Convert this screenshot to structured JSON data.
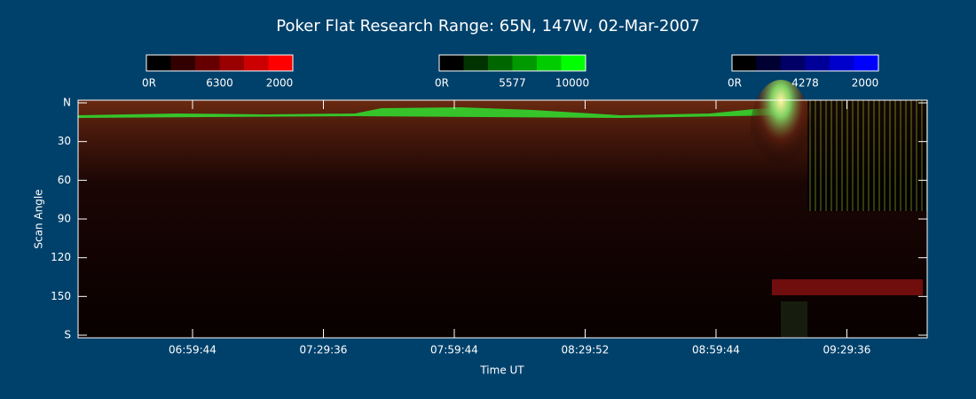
{
  "chart_data": {
    "type": "keogram",
    "title": "Poker Flat Research Range: 65N, 147W, 02-Mar-2007",
    "colorbars": [
      {
        "labels": [
          "0R",
          "6300",
          "2000"
        ],
        "color": "#ff0000"
      },
      {
        "labels": [
          "0R",
          "5577",
          "10000"
        ],
        "color": "#00ff00"
      },
      {
        "labels": [
          "0R",
          "4278",
          "2000"
        ],
        "color": "#0000ff"
      }
    ],
    "y_label": "Scan Angle",
    "x_label": "Time UT",
    "ylim": [
      0,
      180
    ],
    "yticks": [
      {
        "value": 0,
        "label": "N"
      },
      30,
      60,
      90,
      120,
      150,
      {
        "value": 180,
        "label": "S"
      }
    ],
    "x_tick_labels": [
      "06:59:44",
      "07:29:36",
      "07:59:44",
      "08:29:52",
      "08:59:44",
      "09:29:36"
    ]
  }
}
